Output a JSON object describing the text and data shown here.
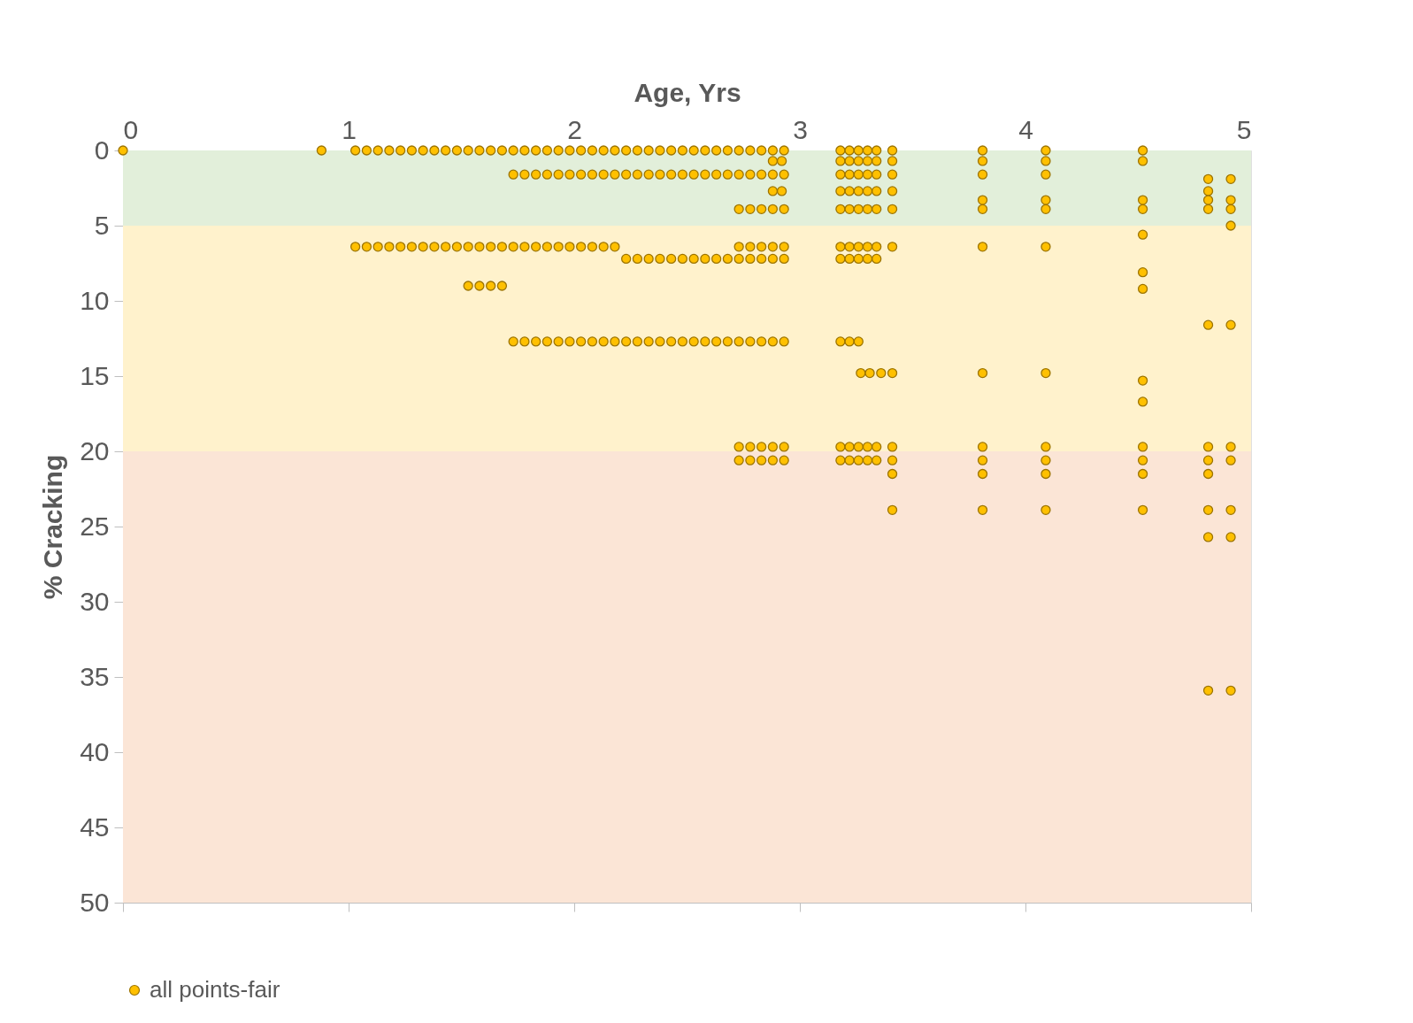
{
  "chart_data": {
    "type": "scatter",
    "xlabel": "Age, Yrs",
    "ylabel": "% Cracking",
    "xlim": [
      0,
      5
    ],
    "xticks": [
      0,
      1,
      2,
      3,
      4,
      5
    ],
    "ylim": [
      50,
      0
    ],
    "yticks": [
      0,
      5,
      10,
      15,
      20,
      25,
      30,
      35,
      40,
      45,
      50
    ],
    "grid": false,
    "legend": "bottom",
    "marker": "circle",
    "bands": [
      {
        "axis": "y",
        "from": 0,
        "to": 5,
        "color": "#e2efda"
      },
      {
        "axis": "y",
        "from": 5,
        "to": 20,
        "color": "#fff2cc"
      },
      {
        "axis": "y",
        "from": 20,
        "to": 50,
        "color": "#fbe5d6"
      }
    ],
    "series": [
      {
        "name": "all points-fair",
        "color": "#ffc000",
        "x": [
          0,
          0.88,
          1.03,
          1.08,
          1.13,
          1.18,
          1.23,
          1.28,
          1.33,
          1.38,
          1.43,
          1.48,
          1.53,
          1.58,
          1.63,
          1.68,
          1.73,
          1.78,
          1.83,
          1.88,
          1.93,
          1.98,
          2.03,
          2.08,
          2.13,
          2.18,
          2.23,
          2.28,
          2.33,
          2.38,
          2.43,
          2.48,
          2.53,
          2.58,
          2.63,
          2.68,
          2.73,
          2.78,
          2.83,
          2.88,
          2.93,
          3.18,
          3.22,
          3.26,
          3.3,
          3.34,
          3.41,
          3.81,
          4.09,
          4.52,
          2.88,
          2.92,
          3.18,
          3.22,
          3.26,
          3.3,
          3.34,
          3.41,
          3.81,
          4.09,
          4.52,
          1.73,
          1.78,
          1.83,
          1.88,
          1.93,
          1.98,
          2.03,
          2.08,
          2.13,
          2.18,
          2.23,
          2.28,
          2.33,
          2.38,
          2.43,
          2.48,
          2.53,
          2.58,
          2.63,
          2.68,
          2.73,
          2.78,
          2.83,
          2.88,
          2.93,
          3.18,
          3.22,
          3.26,
          3.3,
          3.34,
          3.41,
          3.81,
          4.09,
          4.81,
          4.91,
          2.88,
          2.92,
          3.18,
          3.22,
          3.26,
          3.3,
          3.34,
          3.41,
          4.81,
          3.81,
          4.09,
          4.52,
          4.81,
          4.91,
          2.73,
          2.78,
          2.83,
          2.88,
          2.93,
          3.18,
          3.22,
          3.26,
          3.3,
          3.34,
          3.41,
          3.81,
          4.09,
          4.52,
          4.81,
          4.91,
          4.91,
          4.52,
          1.03,
          1.08,
          1.13,
          1.18,
          1.23,
          1.28,
          1.33,
          1.38,
          1.43,
          1.48,
          1.53,
          1.58,
          1.63,
          1.68,
          1.73,
          1.78,
          1.83,
          1.88,
          1.93,
          1.98,
          2.03,
          2.08,
          2.13,
          2.18,
          2.73,
          2.78,
          2.83,
          2.88,
          2.93,
          3.18,
          3.22,
          3.26,
          3.3,
          3.34,
          3.41,
          3.81,
          4.09,
          2.23,
          2.28,
          2.33,
          2.38,
          2.43,
          2.48,
          2.53,
          2.58,
          2.63,
          2.68,
          2.73,
          2.78,
          2.83,
          2.88,
          2.93,
          3.18,
          3.22,
          3.26,
          3.3,
          3.34,
          4.52,
          1.53,
          1.58,
          1.63,
          1.68,
          4.52,
          4.81,
          4.91,
          1.73,
          1.78,
          1.83,
          1.88,
          1.93,
          1.98,
          2.03,
          2.08,
          2.13,
          2.18,
          2.23,
          2.28,
          2.33,
          2.38,
          2.43,
          2.48,
          2.53,
          2.58,
          2.63,
          2.68,
          2.73,
          2.78,
          2.83,
          2.88,
          2.93,
          3.18,
          3.22,
          3.26,
          3.27,
          3.31,
          3.36,
          3.41,
          3.81,
          4.09,
          4.52,
          4.52,
          2.73,
          2.78,
          2.83,
          2.88,
          2.93,
          3.18,
          3.22,
          3.26,
          3.3,
          3.34,
          3.41,
          3.81,
          4.09,
          4.52,
          4.81,
          4.91,
          2.73,
          2.78,
          2.83,
          2.88,
          2.93,
          3.18,
          3.22,
          3.26,
          3.3,
          3.34,
          3.41,
          3.81,
          4.09,
          4.52,
          4.81,
          4.91,
          3.41,
          3.81,
          4.09,
          4.52,
          4.81,
          3.41,
          3.81,
          4.09,
          4.52,
          4.81,
          4.91,
          4.81,
          4.91,
          4.81,
          4.91
        ],
        "values": [
          0,
          0,
          0,
          0,
          0,
          0,
          0,
          0,
          0,
          0,
          0,
          0,
          0,
          0,
          0,
          0,
          0,
          0,
          0,
          0,
          0,
          0,
          0,
          0,
          0,
          0,
          0,
          0,
          0,
          0,
          0,
          0,
          0,
          0,
          0,
          0,
          0,
          0,
          0,
          0,
          0,
          0,
          0,
          0,
          0,
          0,
          0,
          0,
          0,
          0,
          0.7,
          0.7,
          0.7,
          0.7,
          0.7,
          0.7,
          0.7,
          0.7,
          0.7,
          0.7,
          0.7,
          1.6,
          1.6,
          1.6,
          1.6,
          1.6,
          1.6,
          1.6,
          1.6,
          1.6,
          1.6,
          1.6,
          1.6,
          1.6,
          1.6,
          1.6,
          1.6,
          1.6,
          1.6,
          1.6,
          1.6,
          1.6,
          1.6,
          1.6,
          1.6,
          1.6,
          1.6,
          1.6,
          1.6,
          1.6,
          1.6,
          1.6,
          1.6,
          1.6,
          1.9,
          1.9,
          2.7,
          2.7,
          2.7,
          2.7,
          2.7,
          2.7,
          2.7,
          2.7,
          2.7,
          3.3,
          3.3,
          3.3,
          3.3,
          3.3,
          3.9,
          3.9,
          3.9,
          3.9,
          3.9,
          3.9,
          3.9,
          3.9,
          3.9,
          3.9,
          3.9,
          3.9,
          3.9,
          3.9,
          3.9,
          3.9,
          5,
          5.6,
          6.4,
          6.4,
          6.4,
          6.4,
          6.4,
          6.4,
          6.4,
          6.4,
          6.4,
          6.4,
          6.4,
          6.4,
          6.4,
          6.4,
          6.4,
          6.4,
          6.4,
          6.4,
          6.4,
          6.4,
          6.4,
          6.4,
          6.4,
          6.4,
          6.4,
          6.4,
          6.4,
          6.4,
          6.4,
          6.4,
          6.4,
          6.4,
          6.4,
          6.4,
          6.4,
          6.4,
          6.4,
          7.2,
          7.2,
          7.2,
          7.2,
          7.2,
          7.2,
          7.2,
          7.2,
          7.2,
          7.2,
          7.2,
          7.2,
          7.2,
          7.2,
          7.2,
          7.2,
          7.2,
          7.2,
          7.2,
          7.2,
          8.1,
          9,
          9,
          9,
          9,
          9.2,
          11.6,
          11.6,
          12.7,
          12.7,
          12.7,
          12.7,
          12.7,
          12.7,
          12.7,
          12.7,
          12.7,
          12.7,
          12.7,
          12.7,
          12.7,
          12.7,
          12.7,
          12.7,
          12.7,
          12.7,
          12.7,
          12.7,
          12.7,
          12.7,
          12.7,
          12.7,
          12.7,
          12.7,
          12.7,
          12.7,
          14.8,
          14.8,
          14.8,
          14.8,
          14.8,
          14.8,
          15.3,
          16.7,
          19.7,
          19.7,
          19.7,
          19.7,
          19.7,
          19.7,
          19.7,
          19.7,
          19.7,
          19.7,
          19.7,
          19.7,
          19.7,
          19.7,
          19.7,
          19.7,
          20.6,
          20.6,
          20.6,
          20.6,
          20.6,
          20.6,
          20.6,
          20.6,
          20.6,
          20.6,
          20.6,
          20.6,
          20.6,
          20.6,
          20.6,
          20.6,
          21.5,
          21.5,
          21.5,
          21.5,
          21.5,
          23.9,
          23.9,
          23.9,
          23.9,
          23.9,
          23.9,
          25.7,
          25.7,
          35.9,
          35.9
        ]
      }
    ]
  }
}
